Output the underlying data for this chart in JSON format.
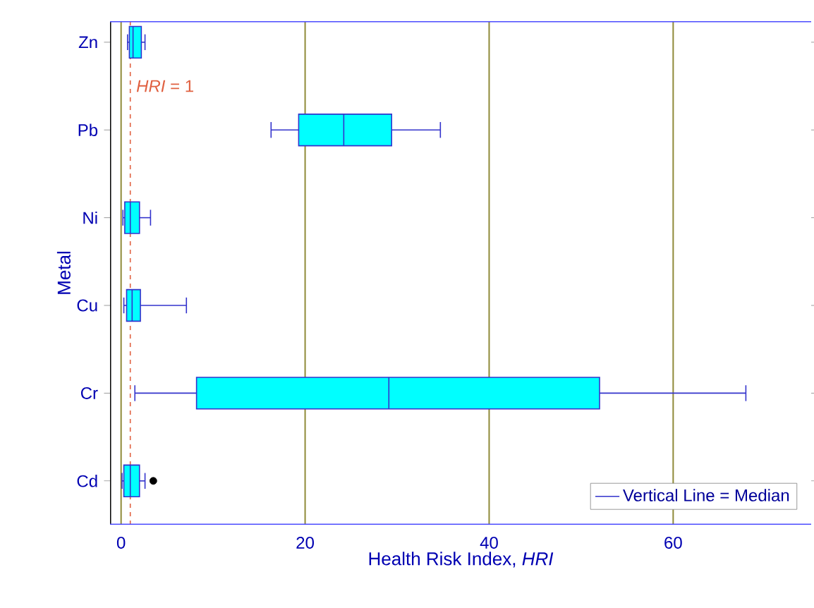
{
  "chart_data": {
    "type": "box",
    "orientation": "horizontal",
    "xlabel": "Health Risk Index, *HRI*",
    "ylabel": "Metal",
    "categories": [
      "Zn",
      "Pb",
      "Ni",
      "Cu",
      "Cr",
      "Cd"
    ],
    "series": [
      {
        "name": "Vertical Line = Median",
        "color": "#3333cc",
        "boxes": [
          {
            "low": 0.7,
            "q1": 0.9,
            "median": 1.3,
            "q3": 2.2,
            "high": 2.6
          },
          {
            "low": 16.3,
            "q1": 19.3,
            "median": 24.2,
            "q3": 29.4,
            "high": 34.7
          },
          {
            "low": 0.2,
            "q1": 0.4,
            "median": 1.0,
            "q3": 2.0,
            "high": 3.2
          },
          {
            "low": 0.3,
            "q1": 0.6,
            "median": 1.2,
            "q3": 2.1,
            "high": 7.1
          },
          {
            "low": 1.5,
            "q1": 8.2,
            "median": 29.1,
            "q3": 52.0,
            "high": 67.9
          },
          {
            "low": 0.1,
            "q1": 0.3,
            "median": 1.0,
            "q3": 2.0,
            "high": 2.6,
            "outliers": [
              3.5
            ]
          }
        ]
      }
    ],
    "xlim": [
      -1.2,
      75
    ],
    "xticks": [
      0,
      20,
      40,
      60
    ],
    "ref_lines": [
      {
        "axis": "x",
        "value": 1,
        "label": "*HRI* = 1",
        "color": "#e06040",
        "line_style": "dashed"
      }
    ],
    "grid": "x",
    "legend": "bottom right"
  }
}
